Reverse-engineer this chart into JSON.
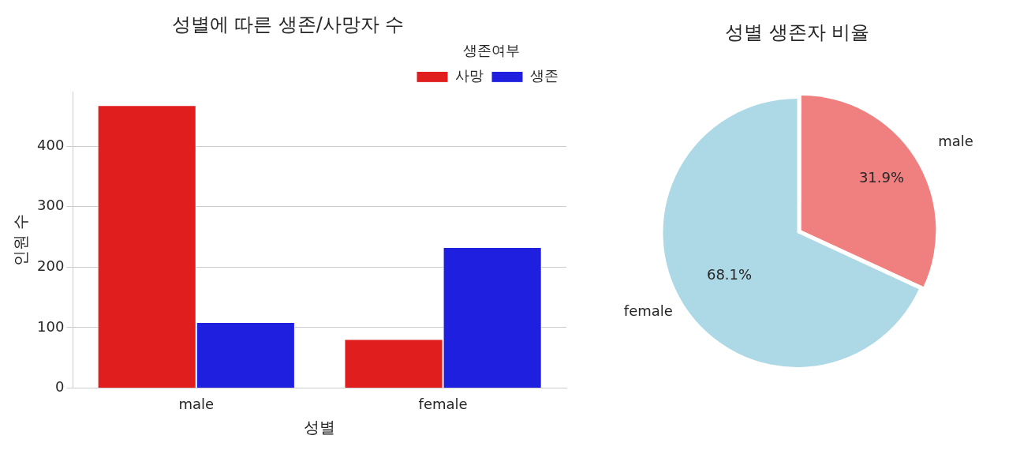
{
  "chart_data": [
    {
      "type": "bar",
      "title": "성별에 따른 생존/사망자 수",
      "xlabel": "성별",
      "ylabel": "인원 수",
      "legend_title": "생존여부",
      "categories": [
        "male",
        "female"
      ],
      "series": [
        {
          "name": "사망",
          "color": "#e01e1e",
          "values": [
            468,
            81
          ]
        },
        {
          "name": "생존",
          "color": "#1f1fe0",
          "values": [
            109,
            233
          ]
        }
      ],
      "ylim": [
        0,
        490
      ],
      "yticks": [
        0,
        100,
        200,
        300,
        400
      ],
      "grid": "y",
      "legend": "top right"
    },
    {
      "type": "pie",
      "title": "성별 생존자 비율",
      "categories": [
        "male",
        "female"
      ],
      "values": [
        31.9,
        68.1
      ],
      "colors": [
        "#f08080",
        "#add8e6"
      ],
      "value_labels": [
        "31.9%",
        "68.1%"
      ],
      "legend": false
    }
  ]
}
